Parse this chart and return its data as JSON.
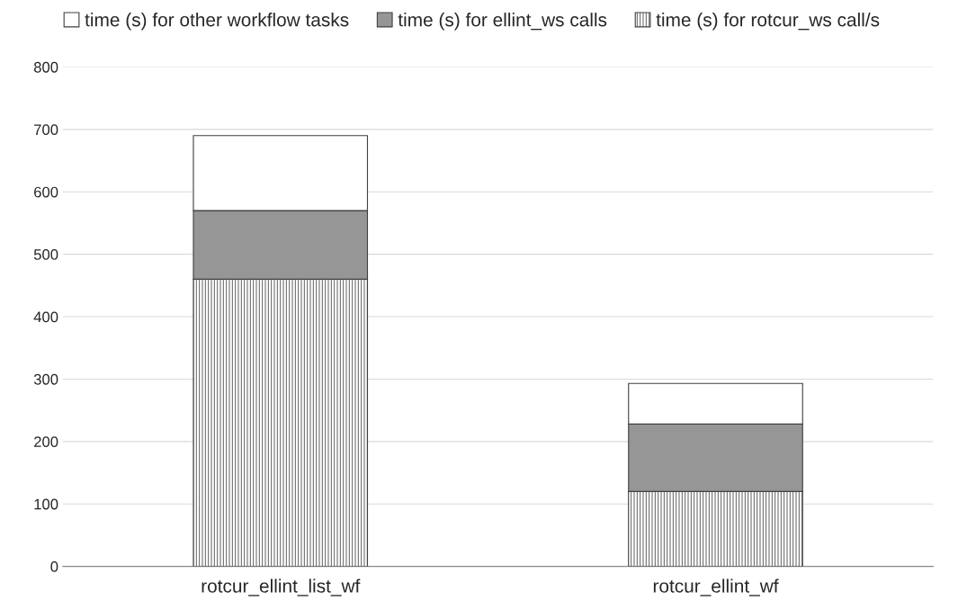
{
  "chart_data": {
    "type": "bar",
    "stacked": true,
    "categories": [
      "rotcur_ellint_list_wf",
      "rotcur_ellint_wf"
    ],
    "series": [
      {
        "name": "time (s) for rotcur_ws call/s",
        "color": "#404040",
        "values": [
          460,
          120
        ]
      },
      {
        "name": "time (s) for ellint_ws calls",
        "color": "#969696",
        "values": [
          110,
          108
        ]
      },
      {
        "name": "time (s) for other workflow tasks",
        "color": "#ffffff",
        "values": [
          120,
          65
        ]
      }
    ],
    "ylim": [
      0,
      800
    ],
    "yticks": [
      0,
      100,
      200,
      300,
      400,
      500,
      600,
      700,
      800
    ],
    "grid": "y",
    "legend": "top"
  }
}
